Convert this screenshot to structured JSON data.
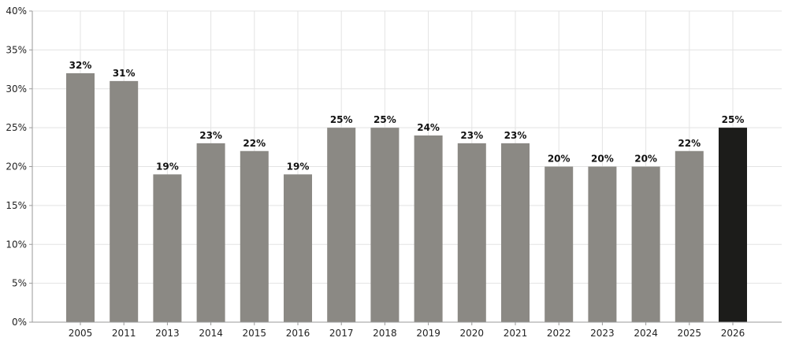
{
  "chart_data": {
    "type": "bar",
    "title": "",
    "xlabel": "",
    "ylabel": "",
    "categories": [
      "2005",
      "2011",
      "2013",
      "2014",
      "2015",
      "2016",
      "2017",
      "2018",
      "2019",
      "2020",
      "2021",
      "2022",
      "2023",
      "2024",
      "2025",
      "2026"
    ],
    "values": [
      32,
      31,
      19,
      23,
      22,
      19,
      25,
      25,
      24,
      23,
      23,
      20,
      20,
      20,
      22,
      25
    ],
    "data_labels": [
      "32%",
      "31%",
      "19%",
      "23%",
      "22%",
      "19%",
      "25%",
      "25%",
      "24%",
      "23%",
      "23%",
      "20%",
      "20%",
      "20%",
      "22%",
      "25%"
    ],
    "ylim": [
      0,
      40
    ],
    "yticks": [
      0,
      5,
      10,
      15,
      20,
      25,
      30,
      35,
      40
    ],
    "ytick_labels": [
      "0%",
      "5%",
      "10%",
      "15%",
      "20%",
      "25%",
      "30%",
      "35%",
      "40%"
    ],
    "grid": true,
    "legend": "none",
    "bar_color": "#8b8984",
    "highlight_color": "#1c1c1a",
    "highlight_category": "2026",
    "grid_color": "#e3e3e3",
    "axis_color": "#9a9a9a"
  }
}
